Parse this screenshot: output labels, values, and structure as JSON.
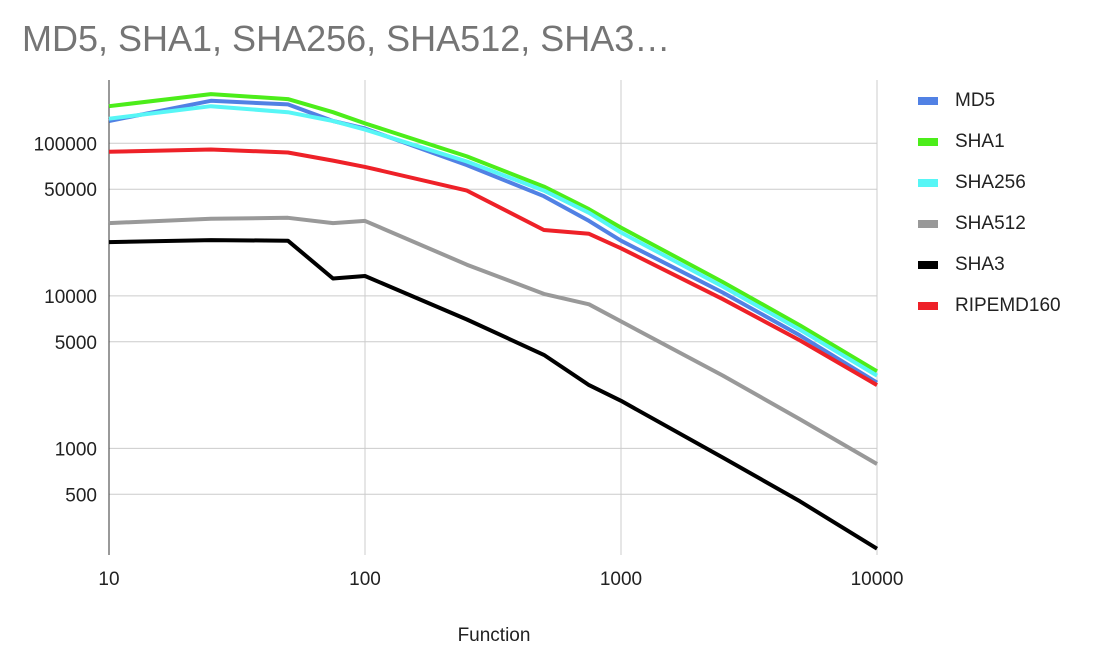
{
  "chart_data": {
    "type": "line",
    "title": "MD5, SHA1, SHA256, SHA512, SHA3…",
    "xlabel": "Function",
    "ylabel": "",
    "x_scale": "log",
    "y_scale": "log",
    "xlim": [
      10,
      10000
    ],
    "ylim": [
      200,
      260000
    ],
    "x_ticks": [
      10,
      100,
      1000,
      10000
    ],
    "y_ticks": [
      500,
      1000,
      5000,
      10000,
      50000,
      100000
    ],
    "grid": true,
    "legend_position": "right",
    "x": [
      10,
      25,
      50,
      75,
      100,
      250,
      500,
      750,
      1000,
      2500,
      5000,
      10000
    ],
    "series": [
      {
        "name": "MD5",
        "color": "#5181e4",
        "values": [
          140000,
          190000,
          180000,
          140000,
          125000,
          72000,
          45000,
          31000,
          23000,
          10500,
          5500,
          2700
        ]
      },
      {
        "name": "SHA1",
        "color": "#4ced1a",
        "values": [
          175000,
          210000,
          195000,
          160000,
          135000,
          82000,
          52000,
          37000,
          28000,
          12300,
          6400,
          3200
        ]
      },
      {
        "name": "SHA256",
        "color": "#57f6f6",
        "values": [
          145000,
          175000,
          160000,
          140000,
          123000,
          76000,
          49000,
          35000,
          26000,
          11500,
          6000,
          3000
        ]
      },
      {
        "name": "SHA512",
        "color": "#999999",
        "values": [
          30000,
          32000,
          32500,
          30000,
          31000,
          16000,
          10300,
          8800,
          6800,
          3000,
          1550,
          790
        ]
      },
      {
        "name": "SHA3",
        "color": "#000000",
        "values": [
          22500,
          23200,
          23000,
          13000,
          13500,
          7000,
          4100,
          2600,
          2050,
          870,
          450,
          220
        ]
      },
      {
        "name": "RIPEMD160",
        "color": "#ee2128",
        "values": [
          88000,
          91000,
          87000,
          77000,
          70000,
          49000,
          27000,
          25500,
          20500,
          9500,
          5100,
          2600
        ]
      }
    ]
  }
}
